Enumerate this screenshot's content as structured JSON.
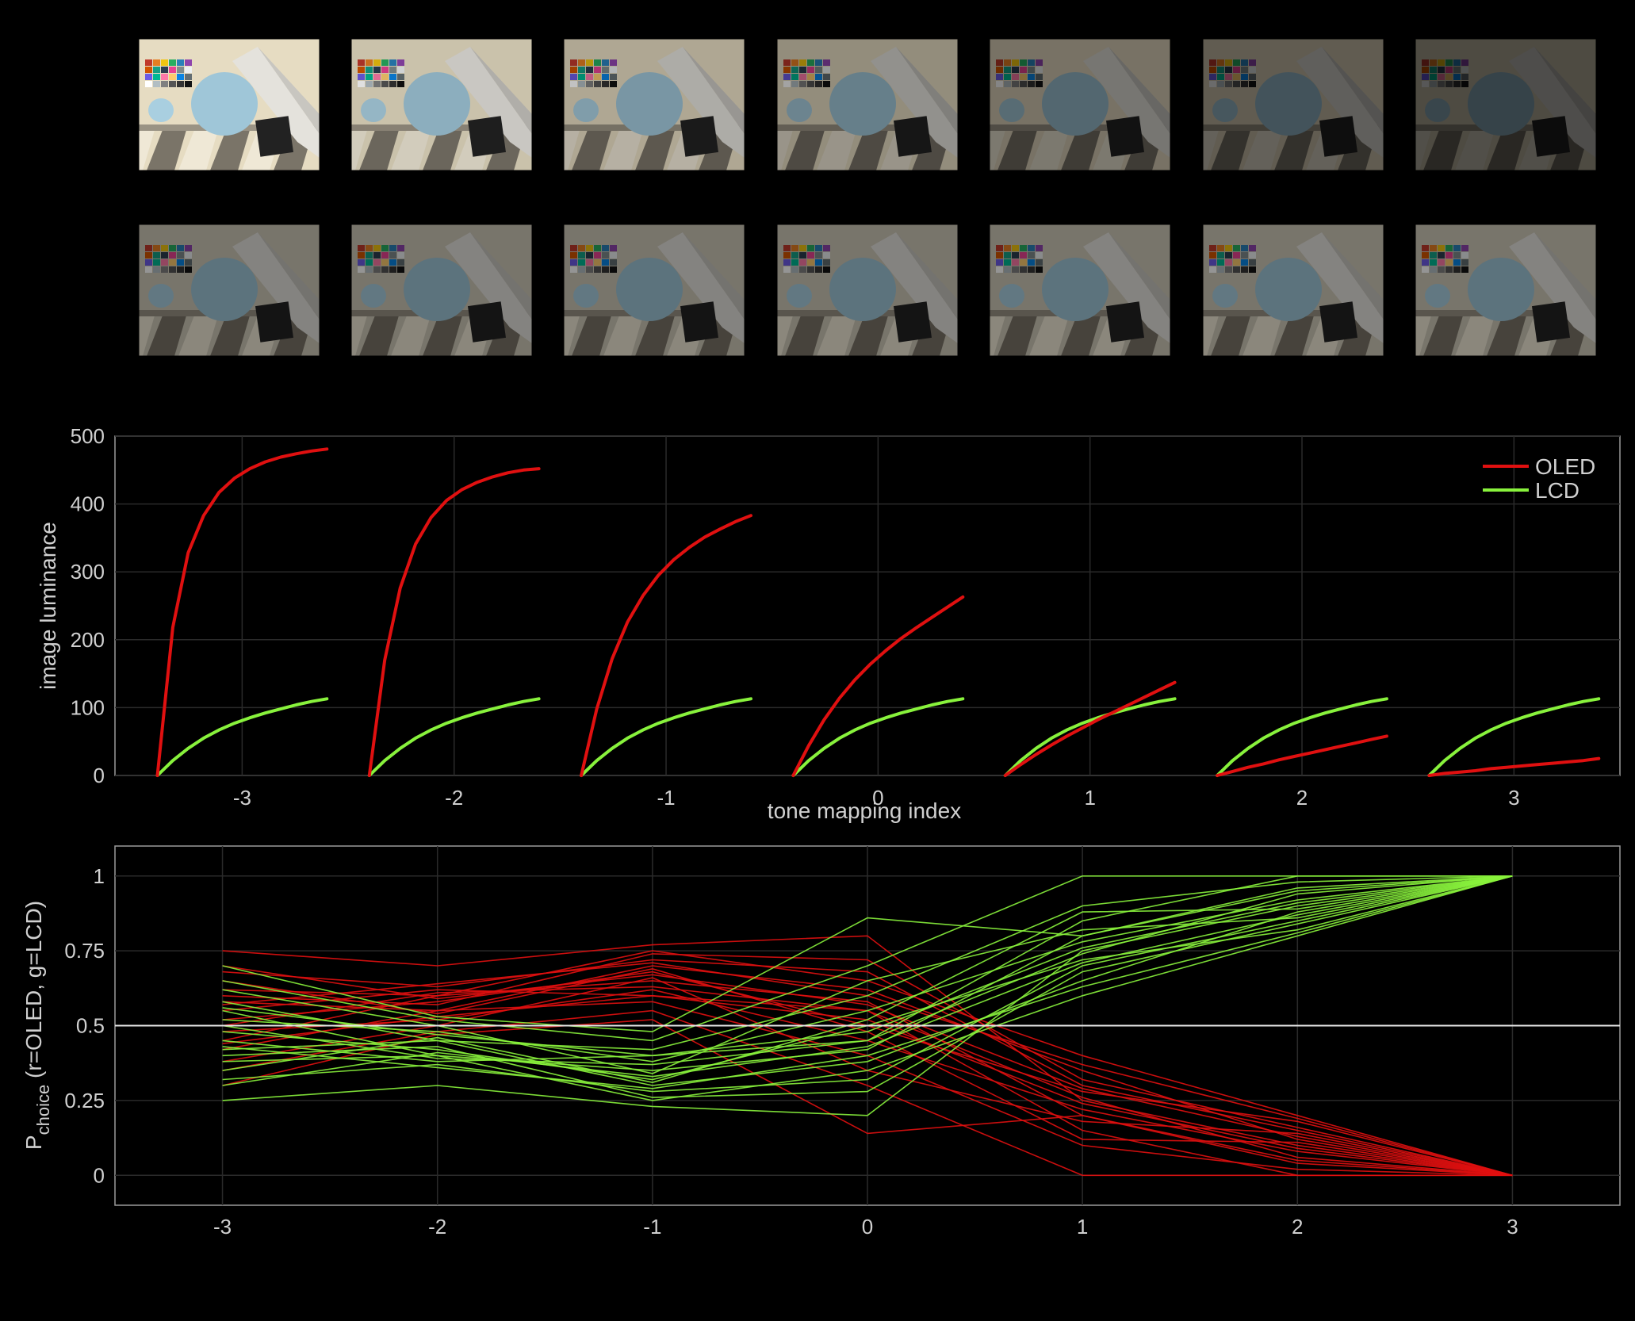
{
  "thumbnails": {
    "rows": [
      {
        "name": "tone-mapped-row-oled",
        "brightness": [
          1.0,
          0.88,
          0.76,
          0.64,
          0.52,
          0.42,
          0.34
        ],
        "tint": "#e6dcc2"
      },
      {
        "name": "tone-mapped-row-lcd",
        "brightness": [
          0.58,
          0.58,
          0.58,
          0.58,
          0.58,
          0.58,
          0.58
        ],
        "tint": "#cfc9b8"
      }
    ]
  },
  "chart_data": [
    {
      "type": "line",
      "xlabel": "tone mapping index",
      "ylabel": "image luminance",
      "xlim": [
        -3.6,
        3.5
      ],
      "ylim": [
        0,
        500
      ],
      "x_ticks": [
        "-3",
        "-2",
        "-1",
        "0",
        "1",
        "2",
        "3"
      ],
      "y_ticks": [
        "0",
        "100",
        "200",
        "300",
        "400",
        "500"
      ],
      "grid": true,
      "legend": {
        "position": "top-right"
      },
      "series": [
        {
          "name": "OLED",
          "color": "#e01010",
          "curves": [
            {
              "index": -3,
              "start": -3.4,
              "end": -2.6,
              "values": [
                0,
                218,
                328,
                383,
                417,
                438,
                452,
                462,
                469,
                474,
                478,
                481
              ]
            },
            {
              "index": -2,
              "start": -2.4,
              "end": -1.6,
              "values": [
                0,
                170,
                276,
                341,
                380,
                405,
                421,
                432,
                440,
                446,
                450,
                452
              ]
            },
            {
              "index": -1,
              "start": -1.4,
              "end": -0.6,
              "values": [
                0,
                98,
                172,
                226,
                265,
                295,
                318,
                336,
                351,
                363,
                374,
                383
              ]
            },
            {
              "index": 0,
              "start": -0.4,
              "end": 0.4,
              "values": [
                0,
                44,
                82,
                114,
                141,
                164,
                184,
                202,
                218,
                233,
                248,
                263
              ]
            },
            {
              "index": 1,
              "start": 0.6,
              "end": 1.4,
              "values": [
                0,
                16,
                31,
                45,
                58,
                70,
                82,
                93,
                104,
                115,
                126,
                137
              ]
            },
            {
              "index": 2,
              "start": 1.6,
              "end": 2.4,
              "values": [
                0,
                6,
                12,
                17,
                23,
                28,
                33,
                38,
                43,
                48,
                53,
                58
              ]
            },
            {
              "index": 3,
              "start": 2.6,
              "end": 3.4,
              "values": [
                0,
                3,
                5,
                7,
                10,
                12,
                14,
                16,
                18,
                20,
                22,
                25
              ]
            }
          ]
        },
        {
          "name": "LCD",
          "color": "#88f23c",
          "curves": [
            {
              "index": -3,
              "start": -3.4,
              "end": -2.6,
              "values": [
                0,
                22,
                40,
                55,
                67,
                77,
                85,
                92,
                98,
                104,
                109,
                113
              ]
            },
            {
              "index": -2,
              "start": -2.4,
              "end": -1.6,
              "values": [
                0,
                22,
                40,
                55,
                67,
                77,
                85,
                92,
                98,
                104,
                109,
                113
              ]
            },
            {
              "index": -1,
              "start": -1.4,
              "end": -0.6,
              "values": [
                0,
                22,
                40,
                55,
                67,
                77,
                85,
                92,
                98,
                104,
                109,
                113
              ]
            },
            {
              "index": 0,
              "start": -0.4,
              "end": 0.4,
              "values": [
                0,
                22,
                40,
                55,
                67,
                77,
                85,
                92,
                98,
                104,
                109,
                113
              ]
            },
            {
              "index": 1,
              "start": 0.6,
              "end": 1.4,
              "values": [
                0,
                22,
                40,
                55,
                67,
                77,
                85,
                92,
                98,
                104,
                109,
                113
              ]
            },
            {
              "index": 2,
              "start": 1.6,
              "end": 2.4,
              "values": [
                0,
                22,
                40,
                55,
                67,
                77,
                85,
                92,
                98,
                104,
                109,
                113
              ]
            },
            {
              "index": 3,
              "start": 2.6,
              "end": 3.4,
              "values": [
                0,
                22,
                40,
                55,
                67,
                77,
                85,
                92,
                98,
                104,
                109,
                113
              ]
            }
          ]
        }
      ]
    },
    {
      "type": "line",
      "xlabel": "",
      "ylabel_main": "P",
      "ylabel_sub": "choice",
      "ylabel_rest": " (r=OLED, g=LCD)",
      "xlim": [
        -3.5,
        3.5
      ],
      "ylim": [
        -0.1,
        1.1
      ],
      "x": [
        -3,
        -2,
        -1,
        0,
        1,
        2,
        3
      ],
      "x_ticks": [
        "-3",
        "-2",
        "-1",
        "0",
        "1",
        "2",
        "3"
      ],
      "y_ticks": [
        "0",
        "0.25",
        "0.5",
        "0.75",
        "1"
      ],
      "y_tick_values": [
        0,
        0.25,
        0.5,
        0.75,
        1
      ],
      "reference_line": 0.5,
      "grid": true,
      "series": [
        {
          "color": "#e01010",
          "lines": [
            [
              0.75,
              0.7,
              0.77,
              0.8,
              0.25,
              0.1,
              0.0
            ],
            [
              0.68,
              0.63,
              0.72,
              0.68,
              0.3,
              0.15,
              0.0
            ],
            [
              0.62,
              0.6,
              0.65,
              0.58,
              0.2,
              0.05,
              0.0
            ],
            [
              0.58,
              0.55,
              0.7,
              0.62,
              0.35,
              0.12,
              0.0
            ],
            [
              0.55,
              0.62,
              0.6,
              0.55,
              0.15,
              0.0,
              0.0
            ],
            [
              0.52,
              0.58,
              0.68,
              0.5,
              0.28,
              0.18,
              0.0
            ],
            [
              0.48,
              0.52,
              0.62,
              0.45,
              0.22,
              0.08,
              0.0
            ],
            [
              0.45,
              0.6,
              0.75,
              0.65,
              0.4,
              0.2,
              0.0
            ],
            [
              0.42,
              0.55,
              0.58,
              0.4,
              0.1,
              0.02,
              0.0
            ],
            [
              0.38,
              0.5,
              0.66,
              0.35,
              0.18,
              0.14,
              0.0
            ],
            [
              0.35,
              0.48,
              0.55,
              0.3,
              0.0,
              0.0,
              0.0
            ],
            [
              0.6,
              0.57,
              0.74,
              0.72,
              0.32,
              0.16,
              0.0
            ],
            [
              0.5,
              0.61,
              0.63,
              0.55,
              0.26,
              0.06,
              0.0
            ],
            [
              0.65,
              0.54,
              0.69,
              0.48,
              0.12,
              0.11,
              0.0
            ],
            [
              0.3,
              0.47,
              0.52,
              0.14,
              0.2,
              0.04,
              0.0
            ],
            [
              0.57,
              0.64,
              0.71,
              0.6,
              0.37,
              0.19,
              0.0
            ],
            [
              0.44,
              0.53,
              0.6,
              0.52,
              0.24,
              0.09,
              0.0
            ],
            [
              0.7,
              0.59,
              0.67,
              0.57,
              0.29,
              0.13,
              0.0
            ]
          ]
        },
        {
          "color": "#88f23c",
          "lines": [
            [
              0.25,
              0.3,
              0.23,
              0.2,
              0.75,
              0.9,
              1.0
            ],
            [
              0.32,
              0.37,
              0.28,
              0.32,
              0.7,
              0.85,
              1.0
            ],
            [
              0.38,
              0.4,
              0.35,
              0.42,
              0.8,
              0.95,
              1.0
            ],
            [
              0.42,
              0.45,
              0.3,
              0.38,
              0.65,
              0.88,
              1.0
            ],
            [
              0.45,
              0.38,
              0.4,
              0.45,
              0.85,
              1.0,
              1.0
            ],
            [
              0.48,
              0.42,
              0.32,
              0.5,
              0.72,
              0.82,
              1.0
            ],
            [
              0.52,
              0.48,
              0.38,
              0.55,
              0.78,
              0.92,
              1.0
            ],
            [
              0.55,
              0.4,
              0.25,
              0.35,
              0.6,
              0.8,
              1.0
            ],
            [
              0.58,
              0.45,
              0.42,
              0.6,
              0.9,
              0.98,
              1.0
            ],
            [
              0.62,
              0.5,
              0.34,
              0.65,
              0.82,
              0.86,
              1.0
            ],
            [
              0.65,
              0.52,
              0.45,
              0.7,
              1.0,
              1.0,
              1.0
            ],
            [
              0.4,
              0.43,
              0.26,
              0.28,
              0.68,
              0.84,
              1.0
            ],
            [
              0.5,
              0.39,
              0.37,
              0.45,
              0.74,
              0.94,
              1.0
            ],
            [
              0.35,
              0.46,
              0.31,
              0.52,
              0.88,
              0.89,
              1.0
            ],
            [
              0.7,
              0.53,
              0.48,
              0.86,
              0.8,
              0.96,
              1.0
            ],
            [
              0.43,
              0.36,
              0.29,
              0.4,
              0.63,
              0.81,
              1.0
            ],
            [
              0.56,
              0.47,
              0.4,
              0.48,
              0.76,
              0.91,
              1.0
            ],
            [
              0.3,
              0.41,
              0.33,
              0.43,
              0.71,
              0.87,
              1.0
            ]
          ]
        }
      ]
    }
  ]
}
